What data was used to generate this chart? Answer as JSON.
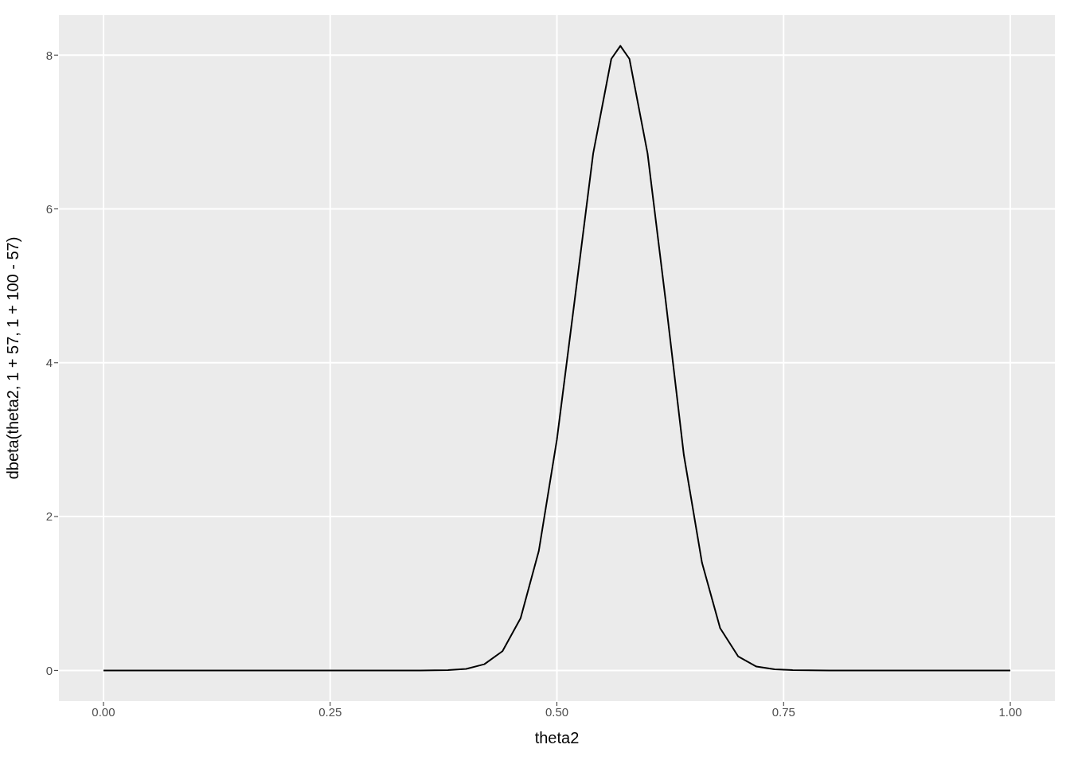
{
  "chart_data": {
    "type": "line",
    "xlabel": "theta2",
    "ylabel": "dbeta(theta2, 1 + 57, 1 + 100 - 57)",
    "x": [
      0,
      0.1,
      0.2,
      0.3,
      0.35,
      0.38,
      0.4,
      0.42,
      0.44,
      0.46,
      0.48,
      0.5,
      0.52,
      0.54,
      0.56,
      0.57,
      0.58,
      0.6,
      0.62,
      0.64,
      0.66,
      0.68,
      0.7,
      0.72,
      0.74,
      0.76,
      0.8,
      0.9,
      1
    ],
    "series": [
      {
        "color": "#000000",
        "values": [
          0,
          0,
          0,
          0,
          0,
          0.005,
          0.02,
          0.08,
          0.25,
          0.68,
          1.55,
          3.0,
          4.85,
          6.72,
          7.95,
          8.12,
          7.95,
          6.72,
          4.8,
          2.8,
          1.4,
          0.55,
          0.18,
          0.05,
          0.015,
          0.004,
          0,
          0,
          0
        ]
      }
    ],
    "xlim": [
      -0.05,
      1.05
    ],
    "xticks": [
      {
        "value": 0,
        "label": "0.00"
      },
      {
        "value": 0.25,
        "label": "0.25"
      },
      {
        "value": 0.5,
        "label": "0.50"
      },
      {
        "value": 0.75,
        "label": "0.75"
      },
      {
        "value": 1,
        "label": "1.00"
      }
    ],
    "ylim": [
      -0.41,
      8.53
    ],
    "yticks": [
      0,
      2,
      4,
      6,
      8
    ],
    "grid": true,
    "marker": "none",
    "line_style": "solid"
  }
}
